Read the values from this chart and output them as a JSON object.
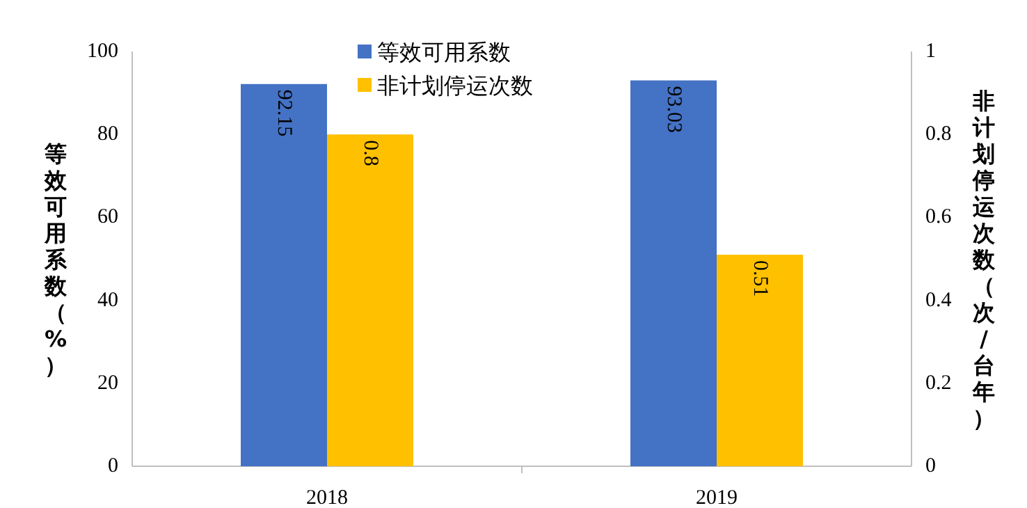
{
  "chart_data": {
    "type": "bar",
    "categories": [
      "2018",
      "2019"
    ],
    "ylabel": "等效可用系数（%）",
    "y2label": "非计划停运次数（次/台年）",
    "ylim": [
      0,
      100
    ],
    "yticks": [
      0,
      20,
      40,
      60,
      80,
      100
    ],
    "y2lim": [
      0,
      1
    ],
    "y2ticks": [
      0,
      0.2,
      0.4,
      0.6,
      0.8,
      1
    ],
    "legend": "top",
    "data_labels": true,
    "series": [
      {
        "name": "等效可用系数",
        "color": "#4472c4",
        "values": [
          92.15,
          93.03
        ]
      },
      {
        "name": "非计划停运次数",
        "color": "#ffc000",
        "values": [
          0.8,
          0.51
        ],
        "axis": "y2"
      }
    ]
  }
}
